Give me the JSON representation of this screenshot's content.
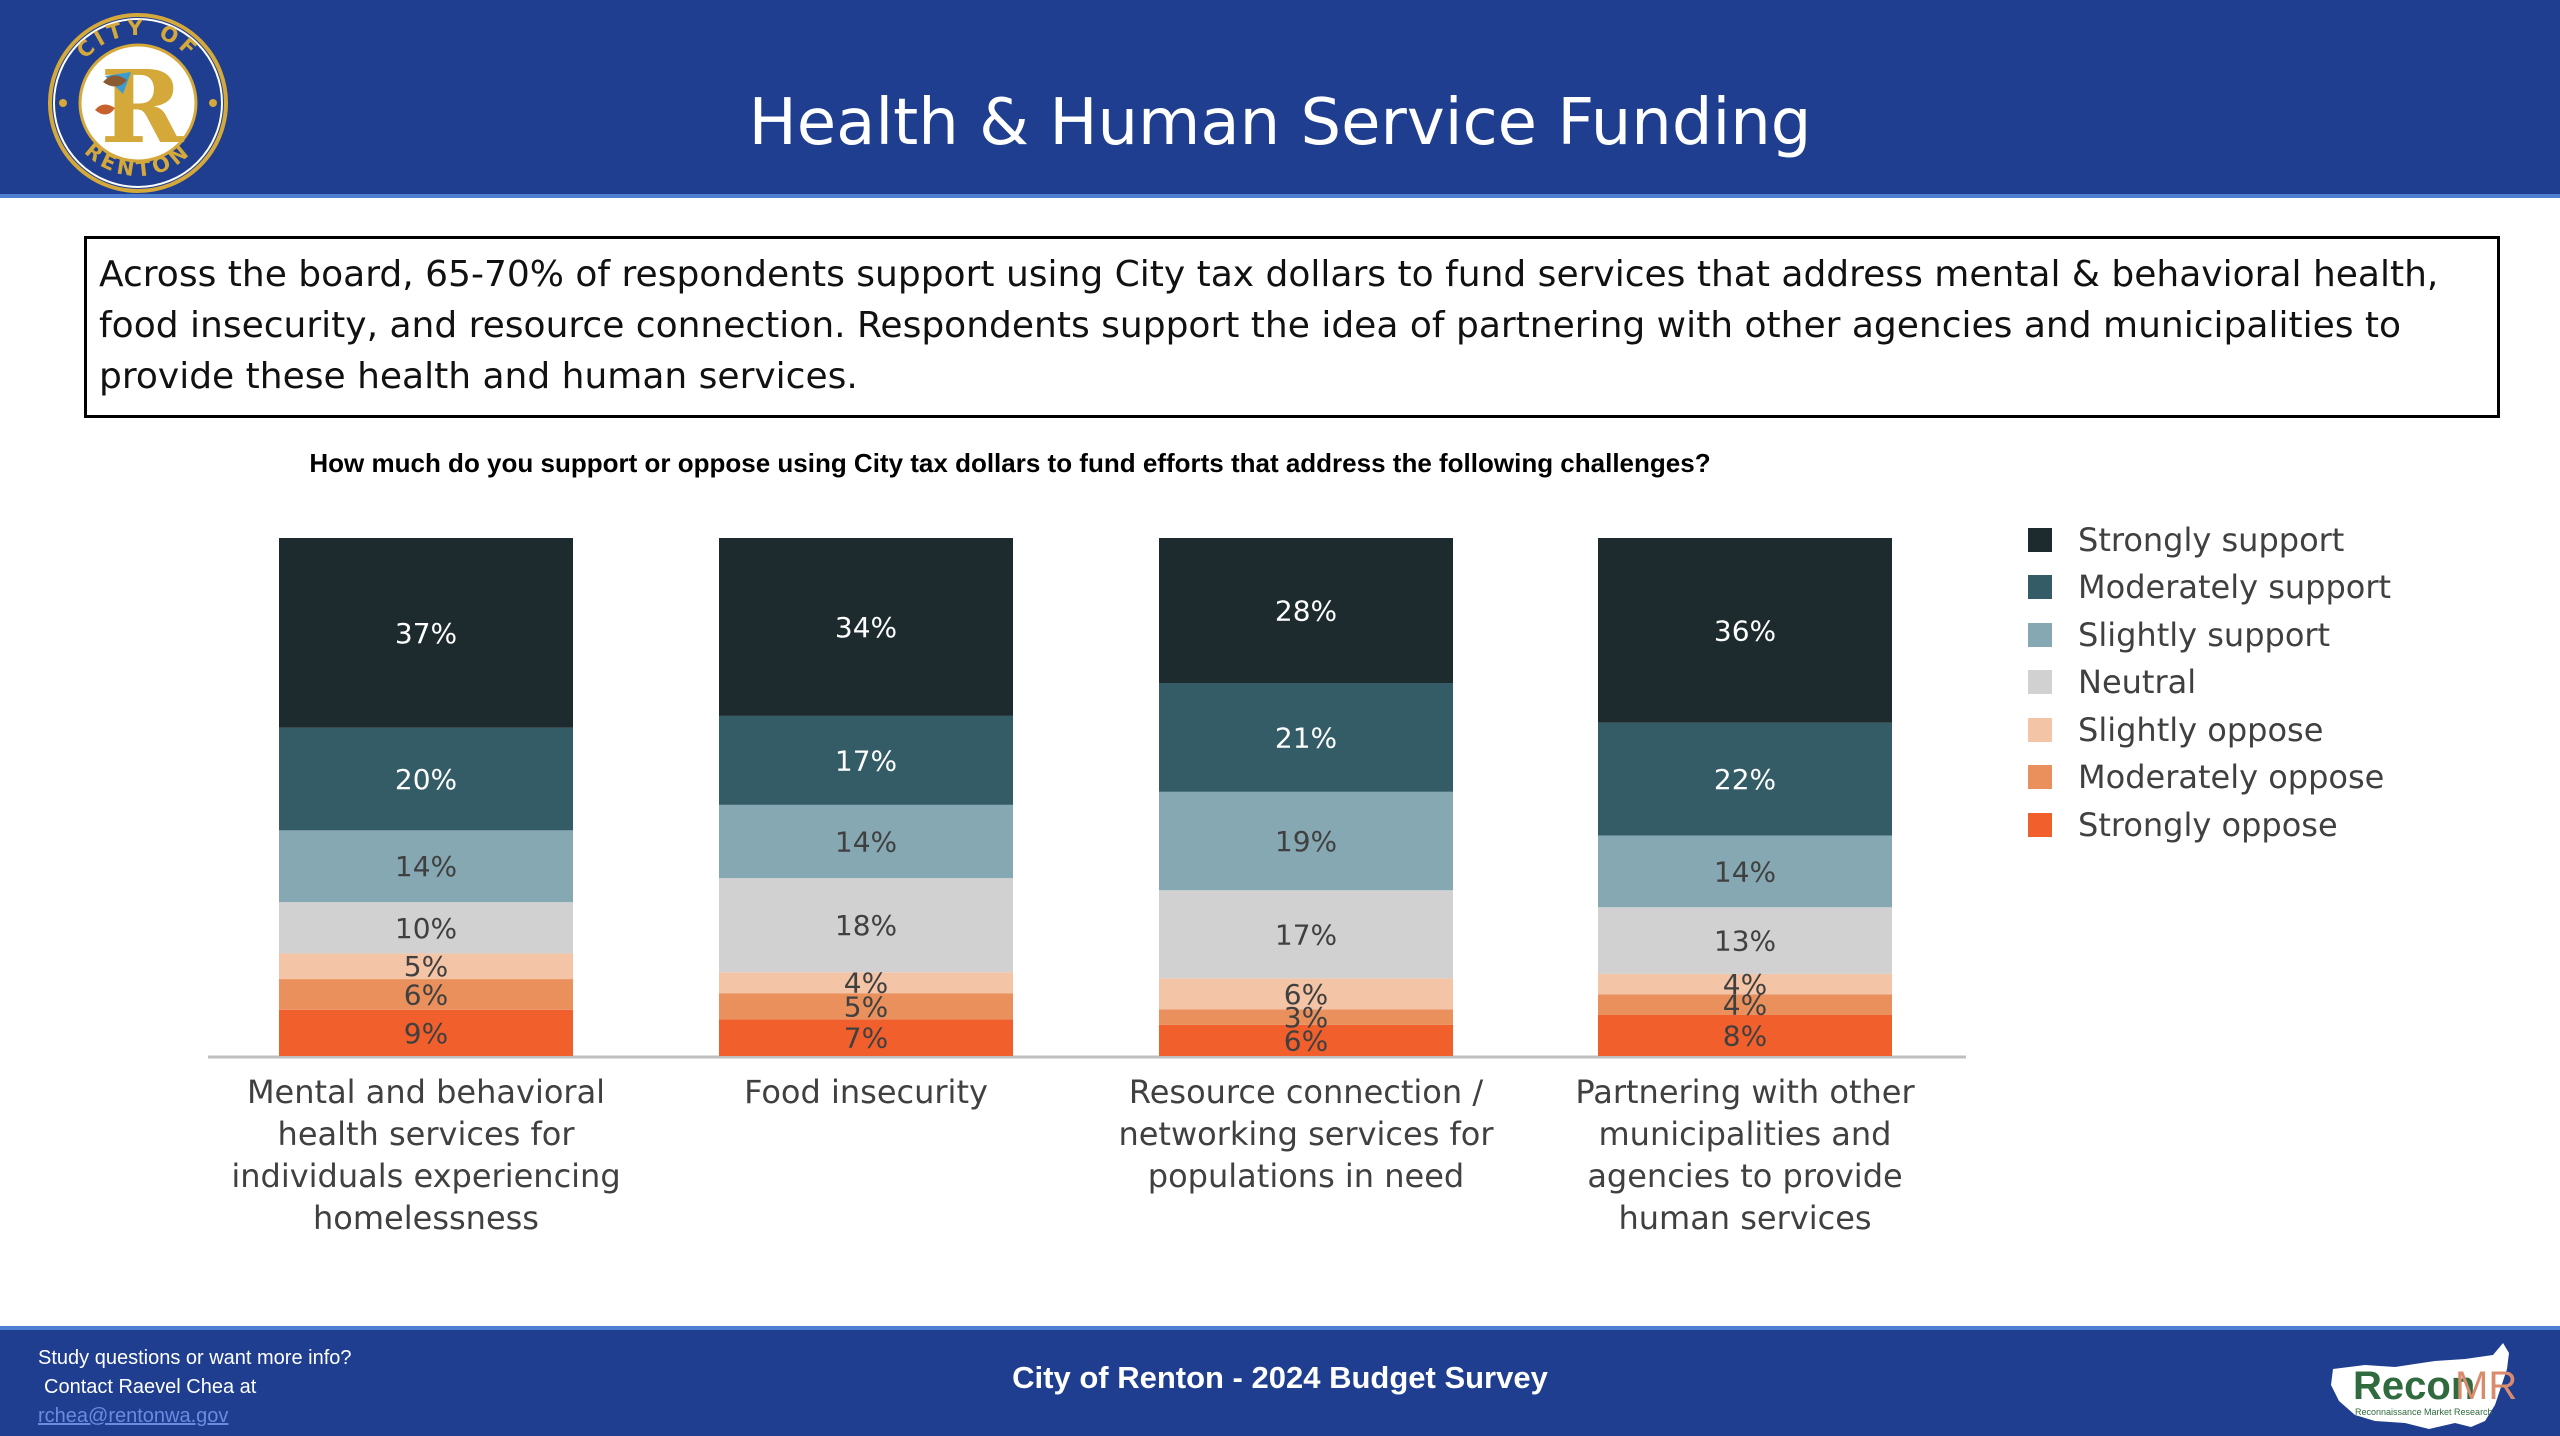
{
  "header": {
    "title": "Health & Human Service Funding",
    "logo_text_top": "CITY OF",
    "logo_text_bottom": "RENTON",
    "logo_letter": "R"
  },
  "summary": "Across the board, 65-70% of respondents support using City tax dollars to fund services that address mental & behavioral health, food insecurity, and resource connection. Respondents support the idea of partnering with other agencies and municipalities to provide these health and human services.",
  "chart_data": {
    "type": "bar",
    "stacked": true,
    "title": "How much do you support or oppose using City tax dollars to fund efforts that address the following challenges?",
    "categories": [
      "Mental and behavioral health services for individuals experiencing homelessness",
      "Food insecurity",
      "Resource connection / networking services for populations in need",
      "Partnering with other municipalities and agencies to provide human services"
    ],
    "series": [
      {
        "name": "Strongly support",
        "color": "#1d2b2f",
        "values": [
          37,
          34,
          28,
          36
        ]
      },
      {
        "name": "Moderately support",
        "color": "#335c66",
        "values": [
          20,
          17,
          21,
          22
        ]
      },
      {
        "name": "Slightly support",
        "color": "#85a8b3",
        "values": [
          14,
          14,
          19,
          14
        ]
      },
      {
        "name": "Neutral",
        "color": "#d1d1d1",
        "values": [
          10,
          18,
          17,
          13
        ]
      },
      {
        "name": "Slightly oppose",
        "color": "#f4c4a6",
        "values": [
          5,
          4,
          6,
          4
        ]
      },
      {
        "name": "Moderately oppose",
        "color": "#e9905c",
        "values": [
          6,
          5,
          3,
          4
        ]
      },
      {
        "name": "Strongly oppose",
        "color": "#f05f2c",
        "values": [
          9,
          7,
          6,
          8
        ]
      }
    ],
    "legend_position": "right",
    "grid": false,
    "ylim": [
      0,
      100
    ]
  },
  "footer": {
    "contact_line1": "Study questions or want more info?",
    "contact_line2": "Contact Raevel Chea at",
    "contact_email": "rchea@rentonwa.gov",
    "title": "City of Renton - 2024 Budget Survey",
    "brand_name": "Recon",
    "brand_suffix": "MR",
    "brand_tagline": "Reconnaissance Market Research"
  }
}
